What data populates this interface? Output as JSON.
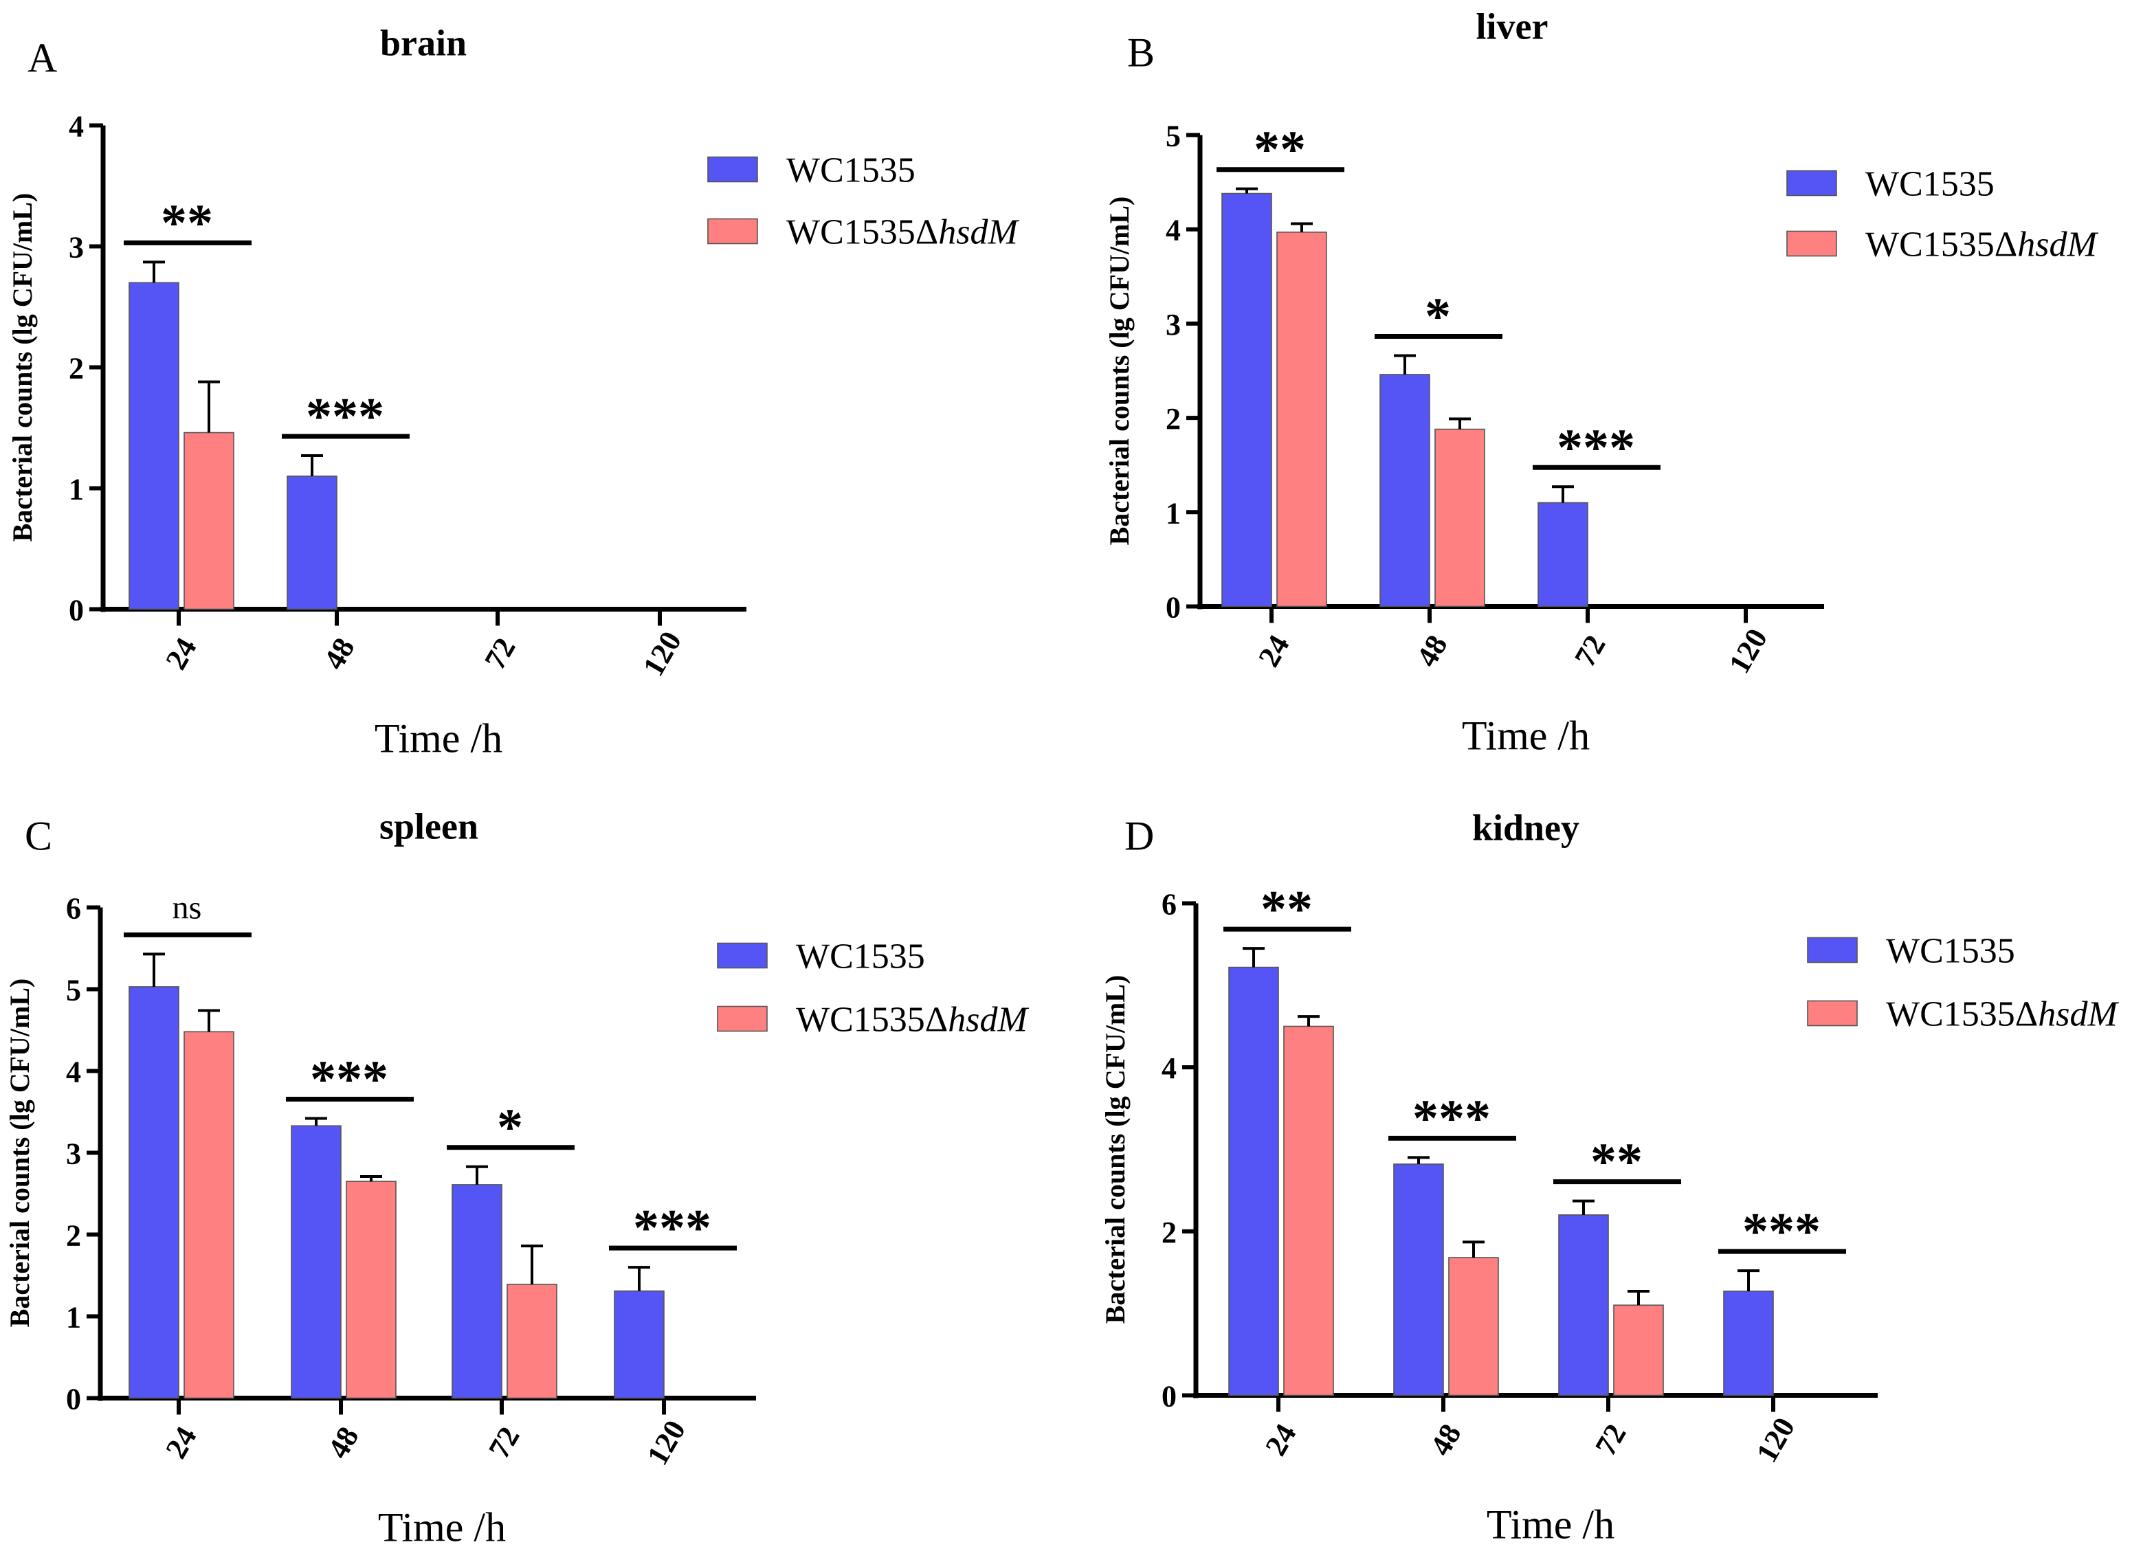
{
  "colors": {
    "WC1535": "#5555F5",
    "WC1535_hsdM": "#FF8080"
  },
  "legend": {
    "series1": "WC1535",
    "series2_prefix": "WC1535Δ",
    "series2_italic": "hsdM"
  },
  "chart_data": [
    {
      "type": "bar",
      "panel": "A",
      "title": "brain",
      "xlabel": "Time /h",
      "ylabel": "Bacterial counts (lg CFU/mL)",
      "ylim": [
        0,
        4
      ],
      "yticks": [
        0,
        1,
        2,
        3,
        4
      ],
      "categories": [
        "24",
        "48",
        "72",
        "120"
      ],
      "series": [
        {
          "name": "WC1535",
          "values": [
            2.7,
            1.1,
            0,
            0
          ],
          "errors": [
            0.17,
            0.17,
            0,
            0
          ]
        },
        {
          "name": "WC1535ΔhsdM",
          "values": [
            1.46,
            0,
            0,
            0
          ],
          "errors": [
            0.42,
            0,
            0,
            0
          ]
        }
      ],
      "significance": [
        "**",
        "***",
        "",
        ""
      ],
      "legend_position": "top-right"
    },
    {
      "type": "bar",
      "panel": "B",
      "title": "liver",
      "xlabel": "Time /h",
      "ylabel": "Bacterial counts (lg CFU/mL)",
      "ylim": [
        0,
        5
      ],
      "yticks": [
        0,
        1,
        2,
        3,
        4,
        5
      ],
      "categories": [
        "24",
        "48",
        "72",
        "120"
      ],
      "series": [
        {
          "name": "WC1535",
          "values": [
            4.38,
            2.46,
            1.1,
            0
          ],
          "errors": [
            0.05,
            0.2,
            0.17,
            0
          ]
        },
        {
          "name": "WC1535ΔhsdM",
          "values": [
            3.97,
            1.88,
            0,
            0
          ],
          "errors": [
            0.09,
            0.11,
            0,
            0
          ]
        }
      ],
      "significance": [
        "**",
        "*",
        "***",
        ""
      ],
      "legend_position": "top-right"
    },
    {
      "type": "bar",
      "panel": "C",
      "title": "spleen",
      "xlabel": "Time /h",
      "ylabel": "Bacterial counts (lg CFU/mL)",
      "ylim": [
        0,
        6
      ],
      "yticks": [
        0,
        1,
        2,
        3,
        4,
        5,
        6
      ],
      "categories": [
        "24",
        "48",
        "72",
        "120"
      ],
      "series": [
        {
          "name": "WC1535",
          "values": [
            5.03,
            3.33,
            2.61,
            1.31
          ],
          "errors": [
            0.4,
            0.09,
            0.22,
            0.29
          ]
        },
        {
          "name": "WC1535ΔhsdM",
          "values": [
            4.48,
            2.65,
            1.39,
            0
          ],
          "errors": [
            0.26,
            0.06,
            0.47,
            0
          ]
        }
      ],
      "significance": [
        "ns",
        "***",
        "*",
        "***"
      ],
      "legend_position": "top-right"
    },
    {
      "type": "bar",
      "panel": "D",
      "title": "kidney",
      "xlabel": "Time /h",
      "ylabel": "Bacterial counts (lg CFU/mL)",
      "ylim": [
        0,
        6
      ],
      "yticks": [
        0,
        2,
        4,
        6
      ],
      "categories": [
        "24",
        "48",
        "72",
        "120"
      ],
      "series": [
        {
          "name": "WC1535",
          "values": [
            5.22,
            2.82,
            2.2,
            1.27
          ],
          "errors": [
            0.23,
            0.08,
            0.17,
            0.25
          ]
        },
        {
          "name": "WC1535ΔhsdM",
          "values": [
            4.5,
            1.68,
            1.1,
            0
          ],
          "errors": [
            0.12,
            0.19,
            0.17,
            0
          ]
        }
      ],
      "significance": [
        "**",
        "***",
        "**",
        "***"
      ],
      "legend_position": "top-right"
    }
  ]
}
